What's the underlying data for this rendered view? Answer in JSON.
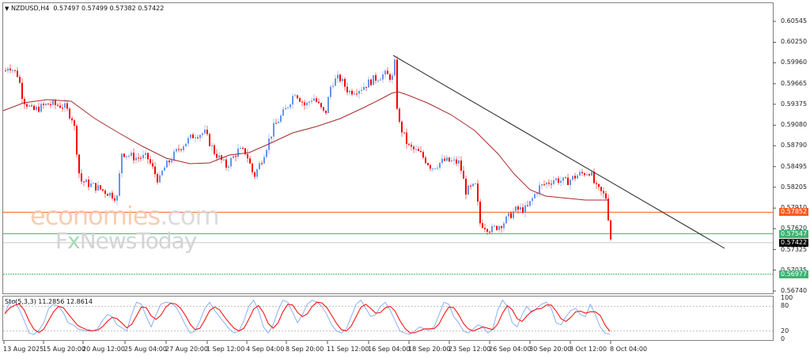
{
  "window": {
    "symbol_header": "NZDUSD,H4",
    "ohlc": "0.57497 0.57499 0.57382 0.57422"
  },
  "indicator": {
    "label": "Sto(5,3,3) 11.2856 12.8614",
    "levels": [
      "100",
      "80",
      "20",
      "0"
    ]
  },
  "watermark": {
    "line1_main": "economies",
    "line1_tld": ".com",
    "line2_a": "F",
    "line2_x": "x",
    "line2_b": "NewsToday"
  },
  "price_axis": {
    "ticks": [
      "0.60545",
      "0.60250",
      "0.59960",
      "0.59665",
      "0.59375",
      "0.59080",
      "0.58790",
      "0.58495",
      "0.58205",
      "0.57910",
      "0.57620",
      "0.57325",
      "0.57035",
      "0.56740"
    ],
    "tags": [
      {
        "label": "0.57852",
        "color": "#ff5a1f"
      },
      {
        "label": "0.57547",
        "color": "#3cb371"
      },
      {
        "label": "0.57422",
        "color": "#000000"
      },
      {
        "label": "0.56977",
        "color": "#3cb371"
      }
    ]
  },
  "time_axis": {
    "ticks": [
      "13 Aug 2025",
      "15 Aug 20:00",
      "20 Aug 12:00",
      "25 Aug 04:00",
      "27 Aug 20:00",
      "1 Sep 12:00",
      "4 Sep 04:00",
      "8 Sep 20:00",
      "11 Sep 12:00",
      "16 Sep 04:00",
      "18 Sep 20:00",
      "23 Sep 12:00",
      "26 Sep 04:00",
      "30 Sep 20:00",
      "3 Oct 12:00",
      "8 Oct 04:00"
    ]
  },
  "colors": {
    "bull": "#6495ed",
    "bear": "#ff0000",
    "ma": "#a52a2a",
    "trendline": "#000000",
    "resistance": "#ff5a1f",
    "support": "#3cb371",
    "stoch_main": "#6495ed",
    "stoch_signal": "#ff0000"
  },
  "chart_data": {
    "type": "candlestick",
    "title": "NZDUSD,H4",
    "ohlc_last": {
      "open": 0.57497,
      "high": 0.57499,
      "low": 0.57382,
      "close": 0.57422
    },
    "ylim": [
      0.566,
      0.607
    ],
    "x_ticks": [
      "13 Aug 2025",
      "15 Aug 20:00",
      "20 Aug 12:00",
      "25 Aug 04:00",
      "27 Aug 20:00",
      "1 Sep 12:00",
      "4 Sep 04:00",
      "8 Sep 20:00",
      "11 Sep 12:00",
      "16 Sep 04:00",
      "18 Sep 20:00",
      "23 Sep 12:00",
      "26 Sep 04:00",
      "30 Sep 20:00",
      "3 Oct 12:00",
      "8 Oct 04:00"
    ],
    "approx_close_path": [
      {
        "x": "13 Aug 2025",
        "y": 0.599
      },
      {
        "x": "15 Aug 20:00",
        "y": 0.5935
      },
      {
        "x": "20 Aug 12:00",
        "y": 0.5815
      },
      {
        "x": "25 Aug 04:00",
        "y": 0.586
      },
      {
        "x": "27 Aug 20:00",
        "y": 0.588
      },
      {
        "x": "1 Sep 12:00",
        "y": 0.588
      },
      {
        "x": "4 Sep 04:00",
        "y": 0.5855
      },
      {
        "x": "8 Sep 20:00",
        "y": 0.5955
      },
      {
        "x": "11 Sep 12:00",
        "y": 0.5968
      },
      {
        "x": "16 Sep 04:00",
        "y": 0.5985
      },
      {
        "x": "18 Sep 20:00",
        "y": 0.5868
      },
      {
        "x": "23 Sep 12:00",
        "y": 0.5815
      },
      {
        "x": "26 Sep 04:00",
        "y": 0.576
      },
      {
        "x": "30 Sep 20:00",
        "y": 0.582
      },
      {
        "x": "3 Oct 12:00",
        "y": 0.5835
      },
      {
        "x": "8 Oct 04:00",
        "y": 0.5742
      }
    ],
    "moving_average": "smooth line peaking ~0.5938 early, dipping ~0.5860 around 27 Aug, rising to ~0.5945 at 16 Sep, falling to ~0.5805 by 8 Oct",
    "trendline": {
      "from": {
        "x": "16 Sep 04:00",
        "y": 0.6005
      },
      "to": {
        "x": "beyond 8 Oct",
        "y": 0.5735
      }
    },
    "horizontal_levels": [
      {
        "value": 0.57852,
        "color": "resistance-orange"
      },
      {
        "value": 0.57547,
        "color": "support-green"
      },
      {
        "value": 0.57422,
        "color": "current-price-gray"
      },
      {
        "value": 0.56977,
        "color": "support-green-dotted"
      }
    ],
    "stochastic": {
      "params": "5,3,3",
      "main": 11.2856,
      "signal": 12.8614,
      "levels": [
        80,
        20
      ],
      "range": [
        0,
        100
      ]
    }
  }
}
